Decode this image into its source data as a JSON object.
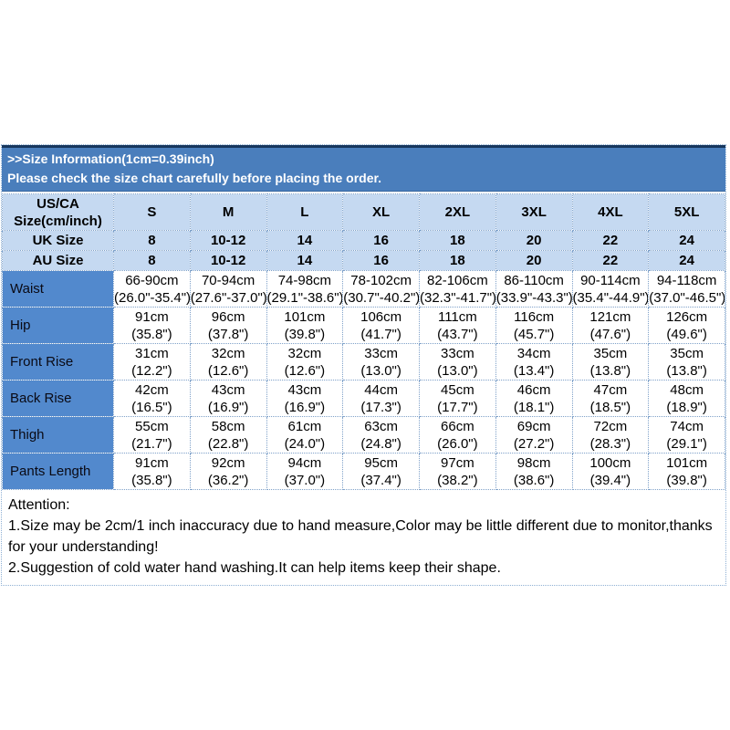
{
  "header": {
    "title": ">>Size Information(1cm=0.39inch)",
    "subtitle": "Please check the size chart carefully before placing the order."
  },
  "size_table": {
    "corner_label_line1": "US/CA",
    "corner_label_line2": "Size(cm/inch)",
    "sizes": [
      "S",
      "M",
      "L",
      "XL",
      "2XL",
      "3XL",
      "4XL",
      "5XL"
    ],
    "uk_row": {
      "label": "UK Size",
      "values": [
        "8",
        "10-12",
        "14",
        "16",
        "18",
        "20",
        "22",
        "24"
      ]
    },
    "au_row": {
      "label": "AU Size",
      "values": [
        "8",
        "10-12",
        "14",
        "16",
        "18",
        "20",
        "22",
        "24"
      ]
    },
    "measure_rows": [
      {
        "label": "Waist",
        "cells": [
          [
            "66-90cm",
            "(26.0\"-35.4\")"
          ],
          [
            "70-94cm",
            "(27.6\"-37.0\")"
          ],
          [
            "74-98cm",
            "(29.1\"-38.6\")"
          ],
          [
            "78-102cm",
            "(30.7\"-40.2\")"
          ],
          [
            "82-106cm",
            "(32.3\"-41.7\")"
          ],
          [
            "86-110cm",
            "(33.9\"-43.3\")"
          ],
          [
            "90-114cm",
            "(35.4\"-44.9\")"
          ],
          [
            "94-118cm",
            "(37.0\"-46.5\")"
          ]
        ]
      },
      {
        "label": "Hip",
        "cells": [
          [
            "91cm",
            "(35.8\")"
          ],
          [
            "96cm",
            "(37.8\")"
          ],
          [
            "101cm",
            "(39.8\")"
          ],
          [
            "106cm",
            "(41.7\")"
          ],
          [
            "111cm",
            "(43.7\")"
          ],
          [
            "116cm",
            "(45.7\")"
          ],
          [
            "121cm",
            "(47.6\")"
          ],
          [
            "126cm",
            "(49.6\")"
          ]
        ]
      },
      {
        "label": "Front Rise",
        "cells": [
          [
            "31cm",
            "(12.2\")"
          ],
          [
            "32cm",
            "(12.6\")"
          ],
          [
            "32cm",
            "(12.6\")"
          ],
          [
            "33cm",
            "(13.0\")"
          ],
          [
            "33cm",
            "(13.0\")"
          ],
          [
            "34cm",
            "(13.4\")"
          ],
          [
            "35cm",
            "(13.8\")"
          ],
          [
            "35cm",
            "(13.8\")"
          ]
        ]
      },
      {
        "label": "Back Rise",
        "cells": [
          [
            "42cm",
            "(16.5\")"
          ],
          [
            "43cm",
            "(16.9\")"
          ],
          [
            "43cm",
            "(16.9\")"
          ],
          [
            "44cm",
            "(17.3\")"
          ],
          [
            "45cm",
            "(17.7\")"
          ],
          [
            "46cm",
            "(18.1\")"
          ],
          [
            "47cm",
            "(18.5\")"
          ],
          [
            "48cm",
            "(18.9\")"
          ]
        ]
      },
      {
        "label": "Thigh",
        "cells": [
          [
            "55cm",
            "(21.7\")"
          ],
          [
            "58cm",
            "(22.8\")"
          ],
          [
            "61cm",
            "(24.0\")"
          ],
          [
            "63cm",
            "(24.8\")"
          ],
          [
            "66cm",
            "(26.0\")"
          ],
          [
            "69cm",
            "(27.2\")"
          ],
          [
            "72cm",
            "(28.3\")"
          ],
          [
            "74cm",
            "(29.1\")"
          ]
        ]
      },
      {
        "label": "Pants Length",
        "cells": [
          [
            "91cm",
            "(35.8\")"
          ],
          [
            "92cm",
            "(36.2\")"
          ],
          [
            "94cm",
            "(37.0\")"
          ],
          [
            "95cm",
            "(37.4\")"
          ],
          [
            "97cm",
            "(38.2\")"
          ],
          [
            "98cm",
            "(38.6\")"
          ],
          [
            "100cm",
            "(39.4\")"
          ],
          [
            "101cm",
            "(39.8\")"
          ]
        ]
      }
    ]
  },
  "attention": {
    "title": "Attention:",
    "lines": [
      "1.Size may be 2cm/1 inch inaccuracy due to hand measure,Color may be little different due to monitor,thanks for your understanding!",
      "2.Suggestion of cold water hand washing.It can help items keep their shape."
    ]
  },
  "colors": {
    "band_blue": "#4a7ebc",
    "navy_border": "#17375d",
    "header_light_blue": "#c5d9f1",
    "row_label_blue": "#5289cd",
    "dotted_border_blue": "#7fa1c9",
    "band_text": "#ffffff",
    "table_text": "#000000"
  }
}
